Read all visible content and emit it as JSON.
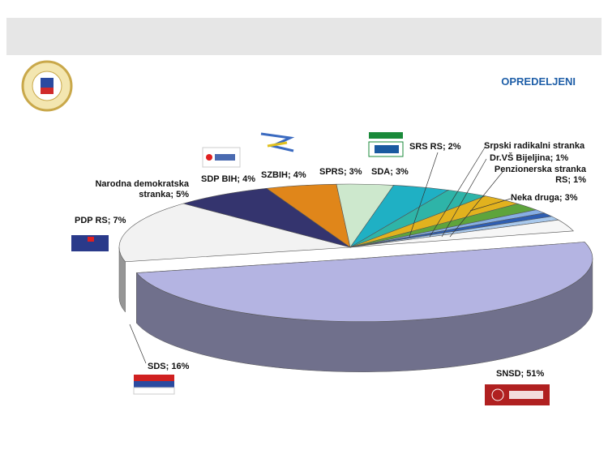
{
  "chart_data": {
    "type": "pie3d",
    "title": "OPREDELJENI",
    "values": [
      51,
      16,
      7,
      5,
      4,
      4,
      3,
      3,
      2,
      1,
      1,
      1,
      3
    ],
    "value_labels": [
      "SNSD; 51%",
      "SDS; 16%",
      "PDP RS; 7%",
      "Narodna demokratska stranka; 5%",
      "SDP BIH; 4%",
      "SZBIH; 4%",
      "SPRS; 3%",
      "SDA; 3%",
      "SRS RS; 2%",
      "Srpski radikalni stranka",
      "Dr.VŠ Bijeljina; 1%",
      "Penzionerska stranka RS; 1%",
      "Neka druga; 3%"
    ],
    "colors": [
      "#b4b4e2",
      "#f2f2f2",
      "#34346e",
      "#e0861a",
      "#cde8cd",
      "#1fb0c4",
      "#2eb4a8",
      "#e2b21e",
      "#5ea43c",
      "#86aee4",
      "#2e5eb2",
      "#a8c8ec",
      "#f6f6f6"
    ]
  }
}
